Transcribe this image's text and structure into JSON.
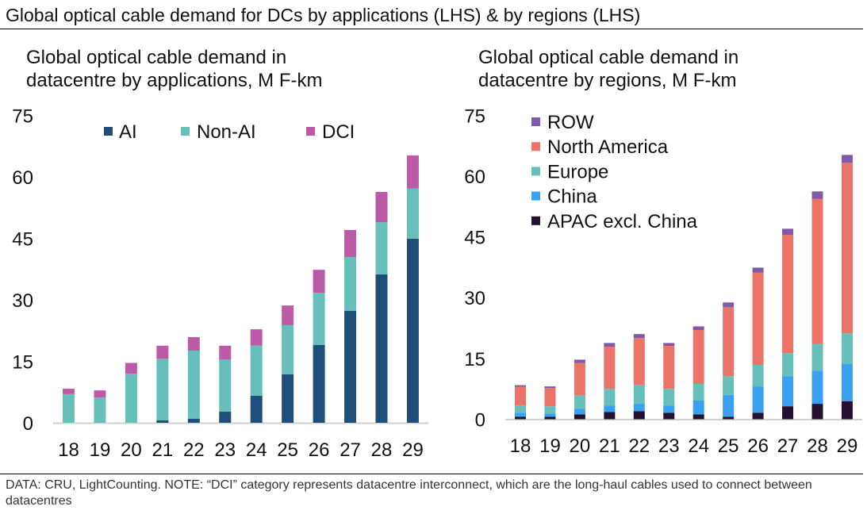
{
  "header": {
    "title": "Global optical cable demand for DCs by applications (LHS) & by regions (LHS)"
  },
  "footer": {
    "note": "DATA: CRU, LightCounting. NOTE: “DCI” category represents datacentre interconnect, which are the long-haul cables used to connect between datacentres"
  },
  "chart_data": [
    {
      "type": "bar",
      "stacked": true,
      "title": "Global optical cable demand in datacentre by applications, M F-km",
      "title_lines": [
        "Global optical cable demand in",
        "datacentre by applications, M F-km"
      ],
      "xlabel": "",
      "ylabel": "",
      "ylim": [
        0,
        75
      ],
      "yticks": [
        "0",
        "15",
        "30",
        "45",
        "60",
        "75"
      ],
      "ytick_values": [
        0,
        15,
        30,
        45,
        60,
        75
      ],
      "grid": false,
      "legend_position": "top",
      "categories": [
        "18",
        "19",
        "20",
        "21",
        "22",
        "23",
        "24",
        "25",
        "26",
        "27",
        "28",
        "29"
      ],
      "series": [
        {
          "name": "AI",
          "color": "#1f4e79",
          "values": [
            0,
            0,
            0,
            0.6,
            1.0,
            2.7,
            6.6,
            11.8,
            19.0,
            27.3,
            36.2,
            44.9
          ]
        },
        {
          "name": "Non-AI",
          "color": "#66bfb8",
          "values": [
            7.0,
            6.2,
            12.0,
            15.0,
            16.6,
            12.7,
            12.2,
            12.0,
            12.7,
            13.1,
            12.7,
            12.2
          ]
        },
        {
          "name": "DCI",
          "color": "#bd5aa8",
          "values": [
            1.3,
            1.7,
            2.6,
            3.2,
            3.3,
            3.4,
            4.0,
            4.8,
            5.6,
            6.6,
            7.4,
            8.1
          ]
        }
      ]
    },
    {
      "type": "bar",
      "stacked": true,
      "title": "Global optical cable demand in datacentre by regions, M F-km",
      "title_lines": [
        "Global optical cable demand in",
        "datacentre by regions, M F-km"
      ],
      "xlabel": "",
      "ylabel": "",
      "ylim": [
        0,
        75
      ],
      "yticks": [
        "0",
        "15",
        "30",
        "45",
        "60",
        "75"
      ],
      "ytick_values": [
        0,
        15,
        30,
        45,
        60,
        75
      ],
      "grid": false,
      "legend_position": "top-left",
      "categories": [
        "18",
        "19",
        "20",
        "21",
        "22",
        "23",
        "24",
        "25",
        "26",
        "27",
        "28",
        "29"
      ],
      "series": [
        {
          "name": "APAC excl. China",
          "color": "#24102f",
          "values": [
            0.6,
            0.6,
            1.2,
            1.8,
            2.0,
            1.6,
            1.2,
            0.6,
            1.6,
            3.2,
            3.8,
            4.4
          ]
        },
        {
          "name": "China",
          "color": "#3aa0f0",
          "values": [
            1.0,
            0.8,
            1.4,
            1.6,
            1.8,
            1.8,
            3.4,
            5.4,
            6.5,
            7.4,
            8.2,
            9.2
          ]
        },
        {
          "name": "Europe",
          "color": "#66bfb8",
          "values": [
            1.8,
            1.8,
            3.3,
            4.1,
            4.7,
            4.1,
            4.1,
            4.6,
            5.3,
            5.7,
            6.6,
            7.6
          ]
        },
        {
          "name": "North America",
          "color": "#ec7368",
          "values": [
            4.6,
            4.5,
            8.0,
            10.4,
            11.5,
            10.6,
            13.3,
            17.1,
            22.8,
            29.2,
            35.8,
            42.1
          ]
        },
        {
          "name": "ROW",
          "color": "#7f5aa8",
          "values": [
            0.4,
            0.4,
            0.8,
            0.9,
            1.0,
            0.7,
            0.9,
            1.1,
            1.2,
            1.5,
            1.8,
            1.9
          ]
        }
      ],
      "legend_order": [
        "ROW",
        "North America",
        "Europe",
        "China",
        "APAC excl. China"
      ]
    }
  ]
}
